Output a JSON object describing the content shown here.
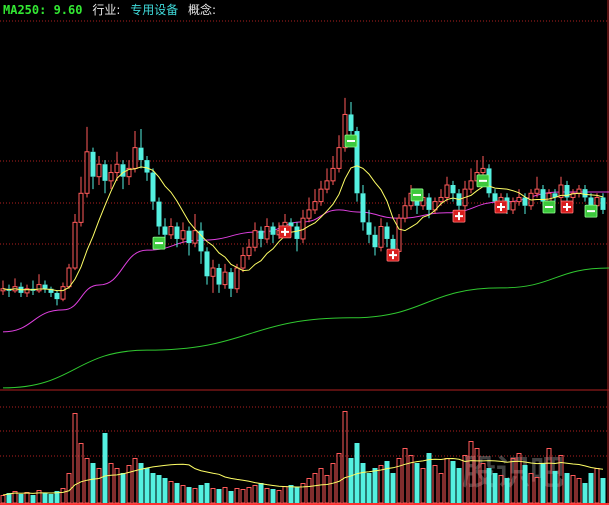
{
  "header": {
    "ma250_label": "MA250: 9.60",
    "industry_label": "行业:",
    "industry_value": "专用设备",
    "concept_label": "概念:"
  },
  "watermark": "股识吧",
  "colors": {
    "up": "#ff5a5a",
    "down": "#54f0e0",
    "ma_short": "#ffff66",
    "ma_mid": "#e040e0",
    "ma250": "#30c830",
    "grid": "#b02020",
    "signal_sell": "#3cc83c",
    "signal_buy": "#d81e1e"
  },
  "chart_data": [
    {
      "type": "candlestick",
      "title": "",
      "grid": true,
      "ohlc": [
        [
          9.05,
          9.3,
          8.95,
          9.1
        ],
        [
          9.1,
          9.2,
          8.9,
          9.05
        ],
        [
          9.05,
          9.35,
          9.0,
          9.15
        ],
        [
          9.15,
          9.25,
          8.9,
          9.0
        ],
        [
          9.0,
          9.2,
          8.9,
          9.1
        ],
        [
          9.1,
          9.3,
          8.95,
          9.05
        ],
        [
          9.05,
          9.45,
          9.0,
          9.2
        ],
        [
          9.2,
          9.3,
          9.0,
          9.1
        ],
        [
          9.1,
          9.15,
          8.9,
          9.0
        ],
        [
          9.0,
          9.05,
          8.7,
          8.85
        ],
        [
          8.85,
          9.25,
          8.8,
          9.15
        ],
        [
          9.15,
          9.7,
          9.1,
          9.6
        ],
        [
          9.6,
          10.9,
          9.55,
          10.7
        ],
        [
          10.7,
          11.8,
          10.6,
          11.4
        ],
        [
          11.4,
          13.0,
          11.3,
          12.4
        ],
        [
          12.4,
          12.5,
          11.5,
          11.8
        ],
        [
          11.8,
          12.3,
          11.6,
          12.1
        ],
        [
          12.1,
          12.2,
          11.4,
          11.7
        ],
        [
          11.7,
          12.1,
          11.5,
          11.9
        ],
        [
          11.9,
          12.4,
          11.7,
          12.1
        ],
        [
          12.1,
          12.2,
          11.5,
          11.8
        ],
        [
          11.8,
          12.2,
          11.6,
          12.0
        ],
        [
          12.0,
          12.9,
          11.9,
          12.5
        ],
        [
          12.5,
          12.95,
          12.0,
          12.2
        ],
        [
          12.2,
          12.3,
          11.7,
          11.9
        ],
        [
          11.9,
          12.0,
          11.0,
          11.2
        ],
        [
          11.2,
          11.3,
          10.4,
          10.6
        ],
        [
          10.6,
          10.8,
          10.2,
          10.4
        ],
        [
          10.4,
          10.8,
          10.3,
          10.6
        ],
        [
          10.6,
          10.7,
          10.1,
          10.3
        ],
        [
          10.3,
          10.7,
          10.2,
          10.5
        ],
        [
          10.5,
          10.6,
          9.9,
          10.2
        ],
        [
          10.2,
          10.9,
          10.1,
          10.5
        ],
        [
          10.5,
          10.7,
          9.7,
          10.0
        ],
        [
          10.0,
          10.1,
          9.2,
          9.4
        ],
        [
          9.4,
          9.8,
          9.0,
          9.6
        ],
        [
          9.6,
          9.7,
          9.0,
          9.2
        ],
        [
          9.2,
          9.7,
          9.1,
          9.5
        ],
        [
          9.5,
          9.6,
          8.9,
          9.1
        ],
        [
          9.1,
          9.7,
          9.0,
          9.6
        ],
        [
          9.6,
          10.1,
          9.5,
          9.9
        ],
        [
          9.9,
          10.3,
          9.8,
          10.1
        ],
        [
          10.1,
          10.7,
          10.0,
          10.5
        ],
        [
          10.5,
          10.6,
          10.1,
          10.3
        ],
        [
          10.3,
          10.8,
          10.2,
          10.6
        ],
        [
          10.6,
          10.7,
          10.2,
          10.4
        ],
        [
          10.4,
          10.7,
          10.3,
          10.5
        ],
        [
          10.5,
          10.9,
          10.4,
          10.7
        ],
        [
          10.7,
          10.8,
          10.4,
          10.6
        ],
        [
          10.6,
          10.7,
          10.0,
          10.3
        ],
        [
          10.3,
          11.0,
          10.2,
          10.8
        ],
        [
          10.8,
          11.3,
          10.7,
          11.0
        ],
        [
          11.0,
          11.5,
          10.9,
          11.2
        ],
        [
          11.2,
          11.7,
          11.1,
          11.5
        ],
        [
          11.5,
          12.0,
          11.4,
          11.7
        ],
        [
          11.7,
          12.3,
          11.6,
          12.0
        ],
        [
          12.0,
          12.8,
          11.9,
          12.5
        ],
        [
          12.5,
          13.7,
          12.4,
          13.3
        ],
        [
          13.3,
          13.6,
          12.7,
          12.9
        ],
        [
          12.9,
          13.0,
          11.2,
          11.4
        ],
        [
          11.4,
          11.6,
          10.5,
          10.7
        ],
        [
          10.7,
          11.0,
          10.2,
          10.4
        ],
        [
          10.4,
          10.6,
          9.9,
          10.1
        ],
        [
          10.1,
          10.8,
          10.0,
          10.6
        ],
        [
          10.6,
          10.7,
          10.1,
          10.3
        ],
        [
          10.3,
          10.4,
          9.8,
          10.0
        ],
        [
          10.0,
          10.9,
          9.95,
          10.8
        ],
        [
          10.8,
          11.3,
          10.7,
          11.1
        ],
        [
          11.1,
          11.6,
          11.0,
          11.4
        ],
        [
          11.4,
          11.5,
          10.9,
          11.1
        ],
        [
          11.1,
          11.4,
          11.0,
          11.3
        ],
        [
          11.3,
          11.4,
          10.8,
          11.0
        ],
        [
          11.0,
          11.3,
          10.9,
          11.2
        ],
        [
          11.2,
          11.5,
          11.1,
          11.3
        ],
        [
          11.3,
          11.8,
          11.2,
          11.6
        ],
        [
          11.6,
          11.7,
          11.2,
          11.4
        ],
        [
          11.4,
          11.5,
          10.9,
          11.1
        ],
        [
          11.1,
          11.7,
          11.0,
          11.5
        ],
        [
          11.5,
          12.0,
          11.4,
          11.7
        ],
        [
          11.7,
          12.2,
          11.6,
          11.9
        ],
        [
          11.9,
          12.3,
          11.8,
          12.0
        ],
        [
          12.0,
          12.1,
          11.3,
          11.4
        ],
        [
          11.4,
          11.5,
          11.0,
          11.2
        ],
        [
          11.2,
          11.4,
          11.1,
          11.3
        ],
        [
          11.3,
          11.4,
          10.9,
          11.0
        ],
        [
          11.0,
          11.3,
          10.9,
          11.2
        ],
        [
          11.2,
          11.5,
          11.1,
          11.3
        ],
        [
          11.3,
          11.4,
          10.9,
          11.1
        ],
        [
          11.1,
          11.5,
          11.0,
          11.4
        ],
        [
          11.4,
          11.8,
          11.3,
          11.5
        ],
        [
          11.5,
          11.6,
          11.1,
          11.2
        ],
        [
          11.2,
          11.5,
          11.1,
          11.4
        ],
        [
          11.4,
          11.5,
          11.2,
          11.3
        ],
        [
          11.3,
          11.8,
          11.2,
          11.6
        ],
        [
          11.6,
          11.7,
          11.2,
          11.3
        ],
        [
          11.3,
          11.5,
          11.2,
          11.4
        ],
        [
          11.4,
          11.6,
          11.3,
          11.5
        ],
        [
          11.5,
          11.6,
          11.2,
          11.3
        ],
        [
          11.3,
          11.4,
          11.0,
          11.1
        ],
        [
          11.1,
          11.4,
          11.0,
          11.3
        ],
        [
          11.3,
          11.4,
          10.9,
          11.0
        ]
      ],
      "ma_mid": [
        [
          0,
          8.06
        ],
        [
          10,
          8.59
        ],
        [
          16,
          9.19
        ],
        [
          24,
          10.03
        ],
        [
          33,
          10.27
        ],
        [
          43,
          10.47
        ],
        [
          50,
          10.71
        ],
        [
          56,
          11.0
        ],
        [
          59,
          10.95
        ],
        [
          66,
          10.8
        ],
        [
          74,
          10.93
        ],
        [
          83,
          11.19
        ],
        [
          93,
          11.43
        ],
        [
          101,
          11.43
        ]
      ],
      "ma250": [
        [
          0,
          6.71
        ],
        [
          24,
          7.62
        ],
        [
          58,
          8.4
        ],
        [
          83,
          9.12
        ],
        [
          101,
          9.6
        ]
      ],
      "signals": [
        {
          "type": "sell",
          "index": 26,
          "price": 10.2
        },
        {
          "type": "sell",
          "index": 58,
          "price": 12.66
        },
        {
          "type": "sell",
          "index": 69,
          "price": 11.36
        },
        {
          "type": "sell",
          "index": 80,
          "price": 11.7
        },
        {
          "type": "sell",
          "index": 91,
          "price": 11.07
        },
        {
          "type": "sell",
          "index": 98,
          "price": 10.97
        },
        {
          "type": "buy",
          "index": 47,
          "price": 10.47
        },
        {
          "type": "buy",
          "index": 65,
          "price": 9.91
        },
        {
          "type": "buy",
          "index": 76,
          "price": 10.85
        },
        {
          "type": "buy",
          "index": 83,
          "price": 11.07
        },
        {
          "type": "buy",
          "index": 94,
          "price": 11.07
        }
      ]
    },
    {
      "type": "bar",
      "title": "",
      "grid": true,
      "volume": [
        8,
        10,
        12,
        9,
        11,
        8,
        13,
        10,
        9,
        12,
        15,
        30,
        90,
        60,
        45,
        40,
        35,
        70,
        40,
        35,
        30,
        38,
        45,
        40,
        35,
        30,
        28,
        25,
        22,
        20,
        18,
        16,
        15,
        18,
        20,
        15,
        14,
        16,
        12,
        15,
        14,
        16,
        18,
        20,
        15,
        14,
        13,
        17,
        18,
        16,
        20,
        25,
        30,
        35,
        28,
        40,
        50,
        92,
        45,
        60,
        40,
        30,
        35,
        38,
        42,
        30,
        45,
        55,
        48,
        40,
        35,
        50,
        38,
        30,
        45,
        42,
        35,
        48,
        62,
        55,
        40,
        35,
        30,
        28,
        25,
        45,
        50,
        38,
        30,
        26,
        40,
        55,
        32,
        48,
        30,
        28,
        25,
        20,
        30,
        35,
        25
      ]
    }
  ]
}
